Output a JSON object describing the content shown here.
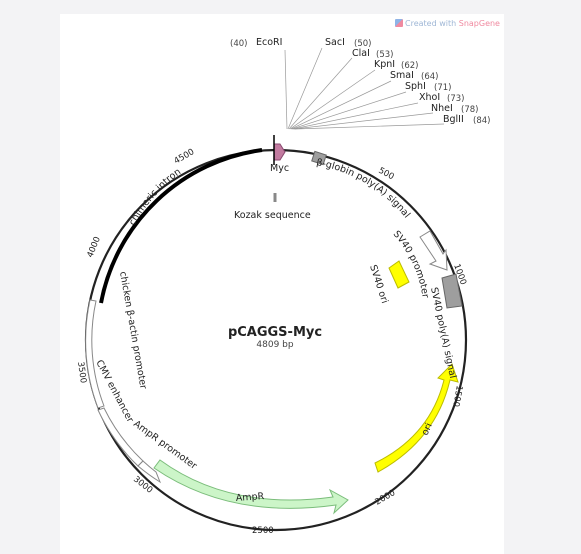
{
  "watermark": {
    "prefix": "Created with",
    "brand": "SnapGene"
  },
  "plasmid": {
    "name": "pCAGGS-Myc",
    "size_label": "4809 bp",
    "length": 4809
  },
  "sites": [
    {
      "name": "EcoRI",
      "pos": "(40)",
      "side": "left"
    },
    {
      "name": "SacI",
      "pos": "(50)",
      "side": "right"
    },
    {
      "name": "ClaI",
      "pos": "(53)",
      "side": "right"
    },
    {
      "name": "KpnI",
      "pos": "(62)",
      "side": "right"
    },
    {
      "name": "SmaI",
      "pos": "(64)",
      "side": "right"
    },
    {
      "name": "SphI",
      "pos": "(71)",
      "side": "right"
    },
    {
      "name": "XhoI",
      "pos": "(73)",
      "side": "right"
    },
    {
      "name": "NheI",
      "pos": "(78)",
      "side": "right"
    },
    {
      "name": "BglII",
      "pos": "(84)",
      "side": "right"
    }
  ],
  "ticks": [
    "500",
    "1000",
    "1500",
    "2000",
    "2500",
    "3000",
    "3500",
    "4000",
    "4500"
  ],
  "features": {
    "myc": "Myc",
    "kozak": "Kozak sequence",
    "globin": "β-globin poly(A) signal",
    "sv40_promoter": "SV40 promoter",
    "sv40_ori": "SV40 ori",
    "sv40_polya": "SV40 poly(A) signal",
    "ori": "ori",
    "ampr": "AmpR",
    "ampr_promoter": "AmpR promoter",
    "cmv": "CMV enhancer",
    "actin": "chicken β-actin promoter",
    "intron": "chimeric intron"
  },
  "colors": {
    "myc": "#c27ba0",
    "ori": "#ffff00",
    "ampr": "#ccf5c8",
    "grey": "#9e9e9e",
    "promoter": "#ffffff"
  }
}
